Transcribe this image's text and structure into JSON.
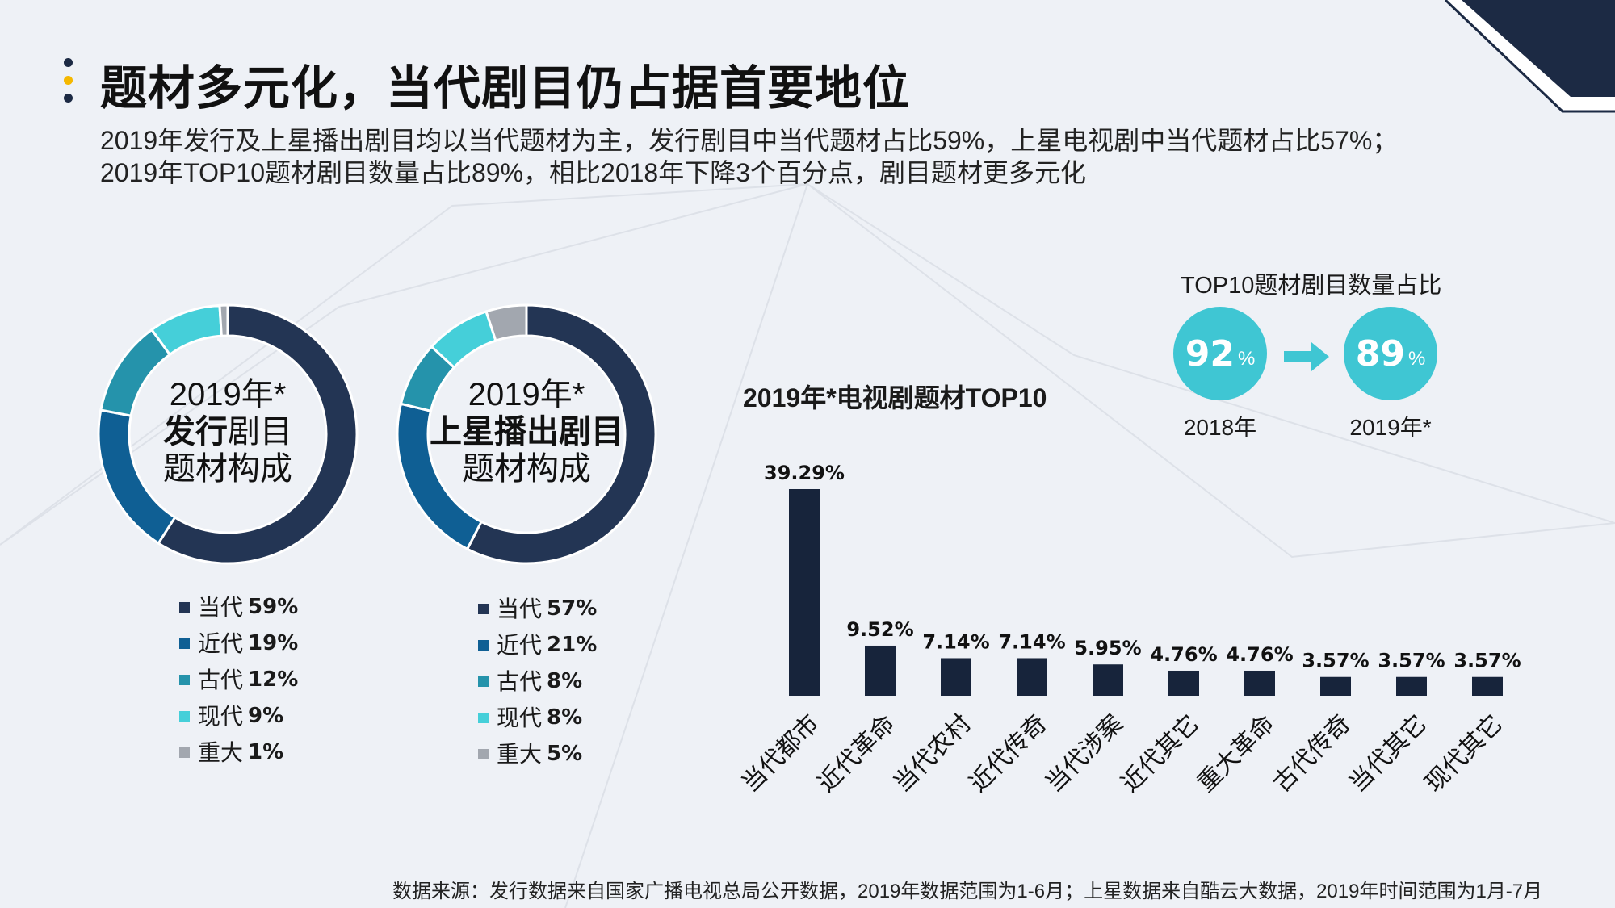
{
  "title": "题材多元化，当代剧目仍占据首要地位",
  "subtitle_lines": [
    "2019年发行及上星播出剧目均以当代题材为主，发行剧目中当代题材占比59%，上星电视剧中当代题材占比57%；",
    "2019年TOP10题材剧目数量占比89%，相比2018年下降3个百分点，剧目题材更多元化"
  ],
  "colors": {
    "dangdai": "#233554",
    "jindai": "#0f5f94",
    "gudai": "#2593ab",
    "xiandai": "#45cfd9",
    "zhongda": "#a2a7af",
    "bar": "#17243b",
    "accent": "#3fc6d3"
  },
  "donut1": {
    "line1": "2019年*",
    "line2_bold": "发行",
    "line2_rest": "剧目",
    "line3": "题材构成"
  },
  "donut2": {
    "line1": "2019年*",
    "line2_bold": "上星播出剧目",
    "line3": "题材构成"
  },
  "bar_title": "2019年*电视剧题材TOP10",
  "top10": {
    "title": "TOP10题材剧目数量占比",
    "from_value": "92",
    "from_unit": "%",
    "from_label": "2018年",
    "to_value": "89",
    "to_unit": "%",
    "to_label": "2019年*"
  },
  "source": "数据来源：发行数据来自国家广播电视总局公开数据，2019年数据范围为1-6月；上星数据来自酷云大数据，2019年时间范围为1月-7月",
  "chart_data": [
    {
      "type": "pie",
      "categories": [
        "当代",
        "近代",
        "古代",
        "现代",
        "重大"
      ],
      "values": [
        59,
        19,
        12,
        9,
        1
      ],
      "labels": [
        "59%",
        "19%",
        "12%",
        "9%",
        "1%"
      ]
    },
    {
      "type": "pie",
      "categories": [
        "当代",
        "近代",
        "古代",
        "现代",
        "重大"
      ],
      "values": [
        57,
        21,
        8,
        8,
        5
      ],
      "labels": [
        "57%",
        "21%",
        "8%",
        "8%",
        "5%"
      ]
    },
    {
      "type": "bar",
      "title": "2019年*电视剧题材TOP10",
      "categories": [
        "当代都市",
        "近代革命",
        "当代农村",
        "近代传奇",
        "当代涉案",
        "近代其它",
        "重大革命",
        "古代传奇",
        "当代其它",
        "现代其它"
      ],
      "values": [
        39.29,
        9.52,
        7.14,
        7.14,
        5.95,
        4.76,
        4.76,
        3.57,
        3.57,
        3.57
      ],
      "labels": [
        "39.29%",
        "9.52%",
        "7.14%",
        "7.14%",
        "5.95%",
        "4.76%",
        "4.76%",
        "3.57%",
        "3.57%",
        "3.57%"
      ]
    }
  ]
}
